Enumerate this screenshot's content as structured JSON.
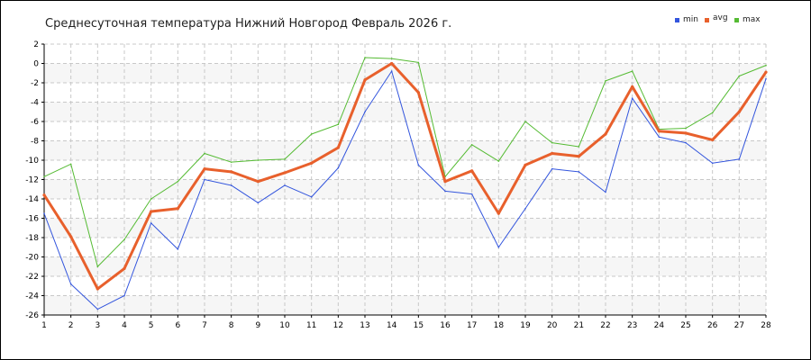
{
  "chart_data": {
    "type": "line",
    "title": "Среднесуточная температура Нижний Новгород  Февраль 2026 г.",
    "xlabel": "",
    "ylabel": "",
    "x": [
      1,
      2,
      3,
      4,
      5,
      6,
      7,
      8,
      9,
      10,
      11,
      12,
      13,
      14,
      15,
      16,
      17,
      18,
      19,
      20,
      21,
      22,
      23,
      24,
      25,
      26,
      27,
      28
    ],
    "ylim": [
      -26,
      2
    ],
    "yticks": [
      2,
      0,
      -2,
      -4,
      -6,
      -8,
      -10,
      -12,
      -14,
      -16,
      -18,
      -20,
      -22,
      -24,
      -26
    ],
    "grid": true,
    "legend_position": "top-right",
    "series": [
      {
        "name": "min",
        "color": "#3355dd",
        "values": [
          -15.5,
          -22.8,
          -25.4,
          -24.0,
          -16.5,
          -19.2,
          -12.0,
          -12.6,
          -14.4,
          -12.6,
          -13.8,
          -10.8,
          -5.0,
          -0.8,
          -10.5,
          -13.2,
          -13.5,
          -19.0,
          -15.0,
          -10.9,
          -11.2,
          -13.3,
          -3.6,
          -7.6,
          -8.2,
          -10.3,
          -9.9,
          -1.6
        ]
      },
      {
        "name": "avg",
        "color": "#e8602c",
        "values": [
          -13.6,
          -17.9,
          -23.3,
          -21.2,
          -15.3,
          -15.0,
          -10.9,
          -11.2,
          -12.2,
          -11.3,
          -10.3,
          -8.7,
          -1.7,
          0.0,
          -3.0,
          -12.2,
          -11.1,
          -15.5,
          -10.5,
          -9.3,
          -9.6,
          -7.3,
          -2.4,
          -7.0,
          -7.2,
          -7.9,
          -5.0,
          -0.9
        ]
      },
      {
        "name": "max",
        "color": "#55bb33",
        "values": [
          -11.7,
          -10.4,
          -21.0,
          -18.2,
          -14.0,
          -12.2,
          -9.3,
          -10.2,
          -10.0,
          -9.9,
          -7.3,
          -6.3,
          0.6,
          0.5,
          0.1,
          -11.7,
          -8.4,
          -10.1,
          -6.0,
          -8.2,
          -8.6,
          -1.8,
          -0.8,
          -6.8,
          -6.7,
          -5.1,
          -1.3,
          -0.2
        ]
      }
    ]
  }
}
